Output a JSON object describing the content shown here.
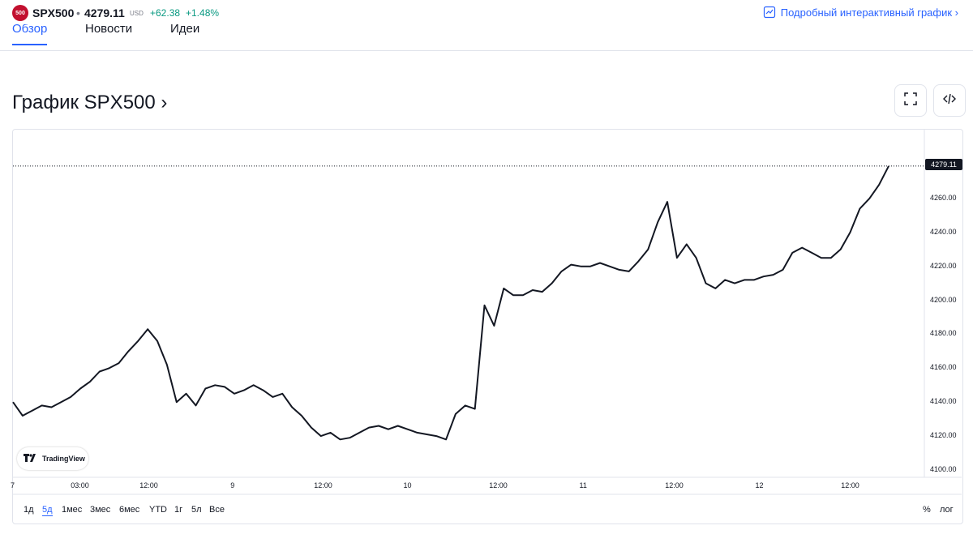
{
  "header": {
    "logo_text": "500",
    "symbol": "SPX500",
    "separator": "•",
    "price": "4279.11",
    "currency": "USD",
    "change": "+62.38",
    "change_pct": "+1.48%",
    "interactive_link": "Подробный интерактивный график ›"
  },
  "tabs": [
    {
      "label": "Обзор",
      "active": true
    },
    {
      "label": "Новости",
      "active": false
    },
    {
      "label": "Идеи",
      "active": false
    }
  ],
  "section_title": "График SPX500 ›",
  "buttons": {
    "fullscreen_icon": "fullscreen-icon",
    "embed_icon": "code-embed-icon"
  },
  "badge": "TradingView",
  "periods": [
    "1д",
    "5д",
    "1мес",
    "3мес",
    "6мес",
    "YTD",
    "1г",
    "5л",
    "Все"
  ],
  "active_period": "5д",
  "options": {
    "percent": "%",
    "log": "лог"
  },
  "chart_data": {
    "type": "line",
    "color": "#131722",
    "current_value_label": "4279.11",
    "y_ticks": [
      "4100.00",
      "4120.00",
      "4140.00",
      "4160.00",
      "4180.00",
      "4200.00",
      "4220.00",
      "4240.00",
      "4260.00"
    ],
    "x_ticks": [
      "7",
      "03:00",
      "12:00",
      "9",
      "12:00",
      "10",
      "12:00",
      "11",
      "12:00",
      "12",
      "12:00"
    ],
    "ylim": [
      4100,
      4280
    ],
    "grid": false,
    "series": [
      {
        "values": [
          4140,
          4132,
          4135,
          4138,
          4137,
          4140,
          4143,
          4148,
          4152,
          4158,
          4160,
          4163,
          4170,
          4176,
          4183,
          4176,
          4162,
          4140,
          4145,
          4138,
          4148,
          4150,
          4149,
          4145,
          4147,
          4150,
          4147,
          4143,
          4145,
          4137,
          4132,
          4125,
          4120,
          4122,
          4118,
          4119,
          4122,
          4125,
          4126,
          4124,
          4126,
          4124,
          4122,
          4121,
          4120,
          4118,
          4133,
          4138,
          4136,
          4197,
          4185,
          4207,
          4203,
          4203,
          4206,
          4205,
          4210,
          4217,
          4221,
          4220,
          4220,
          4222,
          4220,
          4218,
          4217,
          4223,
          4230,
          4246,
          4258,
          4225,
          4233,
          4225,
          4210,
          4207,
          4212,
          4210,
          4212,
          4212,
          4214,
          4215,
          4218,
          4228,
          4231,
          4228,
          4225,
          4225,
          4230,
          4240,
          4254,
          4260,
          4268,
          4279.11
        ]
      }
    ]
  }
}
